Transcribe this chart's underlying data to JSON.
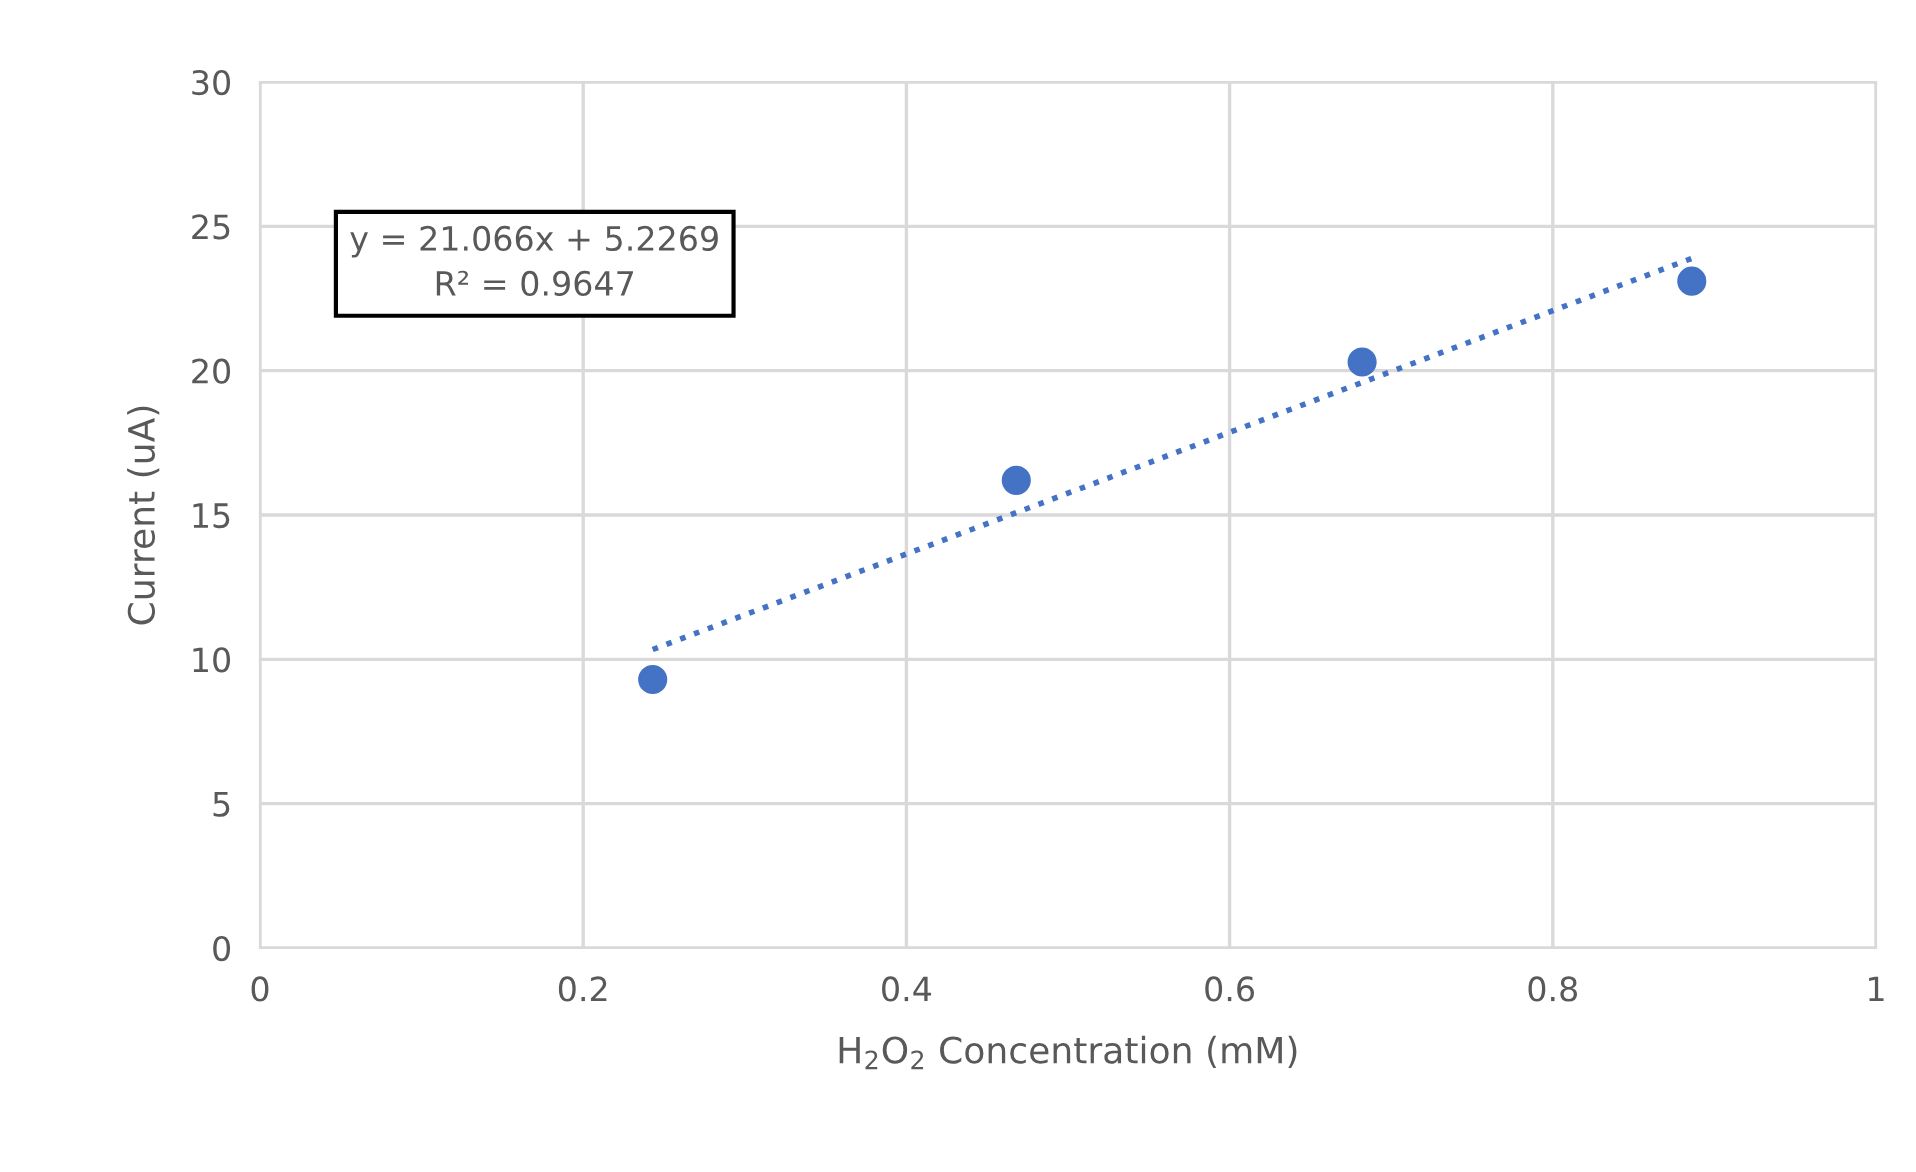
{
  "chart_data": {
    "type": "scatter",
    "xlabel": "H$_{2}$O$_{2}$ Concentration (mM)",
    "ylabel": "Current (uA)",
    "annotations": [
      "y = 21.066x + 5.2269\nR² = 0.9647"
    ],
    "series": [
      {
        "color": "#4472c4",
        "x": [
          0.243,
          0.468,
          0.682,
          0.886
        ],
        "values": [
          9.3,
          16.2,
          20.3,
          23.1
        ],
        "marker": "circle"
      },
      {
        "type": "line",
        "color": "#4472c4",
        "x": [
          0.243,
          0.886
        ],
        "values": [
          10.34,
          23.89
        ],
        "line_style": "dotted",
        "marker": "none"
      }
    ],
    "xlim": [
      0,
      1
    ],
    "xticks": [
      0,
      0.2,
      0.4,
      0.6,
      0.8,
      1
    ],
    "ylim": [
      0,
      30
    ],
    "yticks": [
      0,
      5,
      10,
      15,
      20,
      25,
      30
    ],
    "grid": true,
    "legend": false
  }
}
